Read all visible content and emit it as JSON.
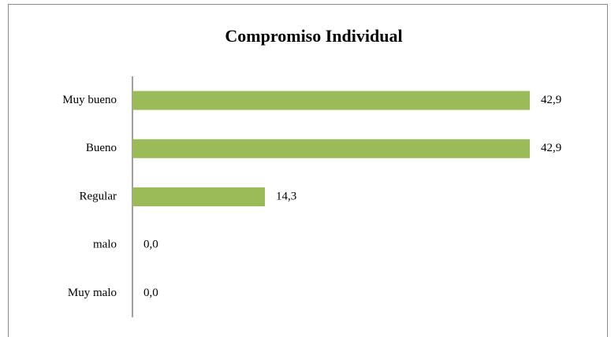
{
  "chart_data": {
    "type": "bar",
    "orientation": "horizontal",
    "title": "Compromiso Individual",
    "categories": [
      "Muy bueno",
      "Bueno",
      "Regular",
      "malo",
      "Muy malo"
    ],
    "values": [
      42.9,
      42.9,
      14.3,
      0,
      0
    ],
    "value_labels": [
      "42,9",
      "42,9",
      "14,3",
      "0,0",
      "0,0"
    ],
    "color": "#9bbb59"
  }
}
